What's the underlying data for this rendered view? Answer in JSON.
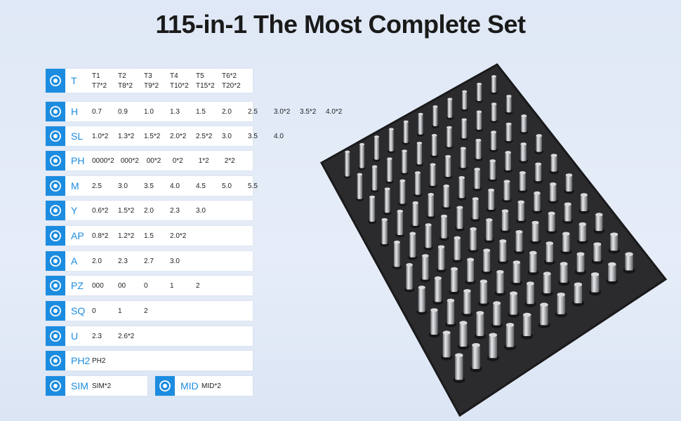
{
  "title": "115-in-1 The Most Complete Set",
  "rows": [
    {
      "code": "T",
      "items": [
        "T1",
        "T2",
        "T3",
        "T4",
        "T5",
        "T6*2"
      ],
      "items_second_line": [
        "T7*2",
        "T8*2",
        "T9*2",
        "T10*2",
        "T15*2",
        "T20*2"
      ]
    },
    {
      "code": "H",
      "items": [
        "0.7",
        "0.9",
        "1.0",
        "1.3",
        "1.5",
        "2.0",
        "2.5",
        "3.0*2",
        "3.5*2",
        "4.0*2"
      ]
    },
    {
      "code": "SL",
      "items": [
        "1.0*2",
        "1.3*2",
        "1.5*2",
        "2.0*2",
        "2.5*2",
        "3.0",
        "3.5",
        "4.0"
      ]
    },
    {
      "code": "PH",
      "items": [
        "0000*2",
        "000*2",
        "00*2",
        "0*2",
        "1*2",
        "2*2"
      ]
    },
    {
      "code": "M",
      "items": [
        "2.5",
        "3.0",
        "3.5",
        "4.0",
        "4.5",
        "5.0",
        "5.5"
      ]
    },
    {
      "code": "Y",
      "items": [
        "0.6*2",
        "1.5*2",
        "2.0",
        "2.3",
        "3.0"
      ]
    },
    {
      "code": "AP",
      "items": [
        "0.8*2",
        "1.2*2",
        "1.5",
        "2.0*2"
      ]
    },
    {
      "code": "A",
      "items": [
        "2.0",
        "2.3",
        "2.7",
        "3.0"
      ]
    },
    {
      "code": "PZ",
      "items": [
        "000",
        "00",
        "0",
        "1",
        "2"
      ]
    },
    {
      "code": "SQ",
      "items": [
        "0",
        "1",
        "2"
      ]
    },
    {
      "code": "U",
      "items": [
        "2.3",
        "2.6*2"
      ]
    },
    {
      "code": "PH2",
      "items": [
        "PH2"
      ]
    },
    {
      "code": "SIM",
      "items": [
        "SIM*2"
      ]
    },
    {
      "code": "MID",
      "items": [
        "MID*2"
      ]
    }
  ]
}
